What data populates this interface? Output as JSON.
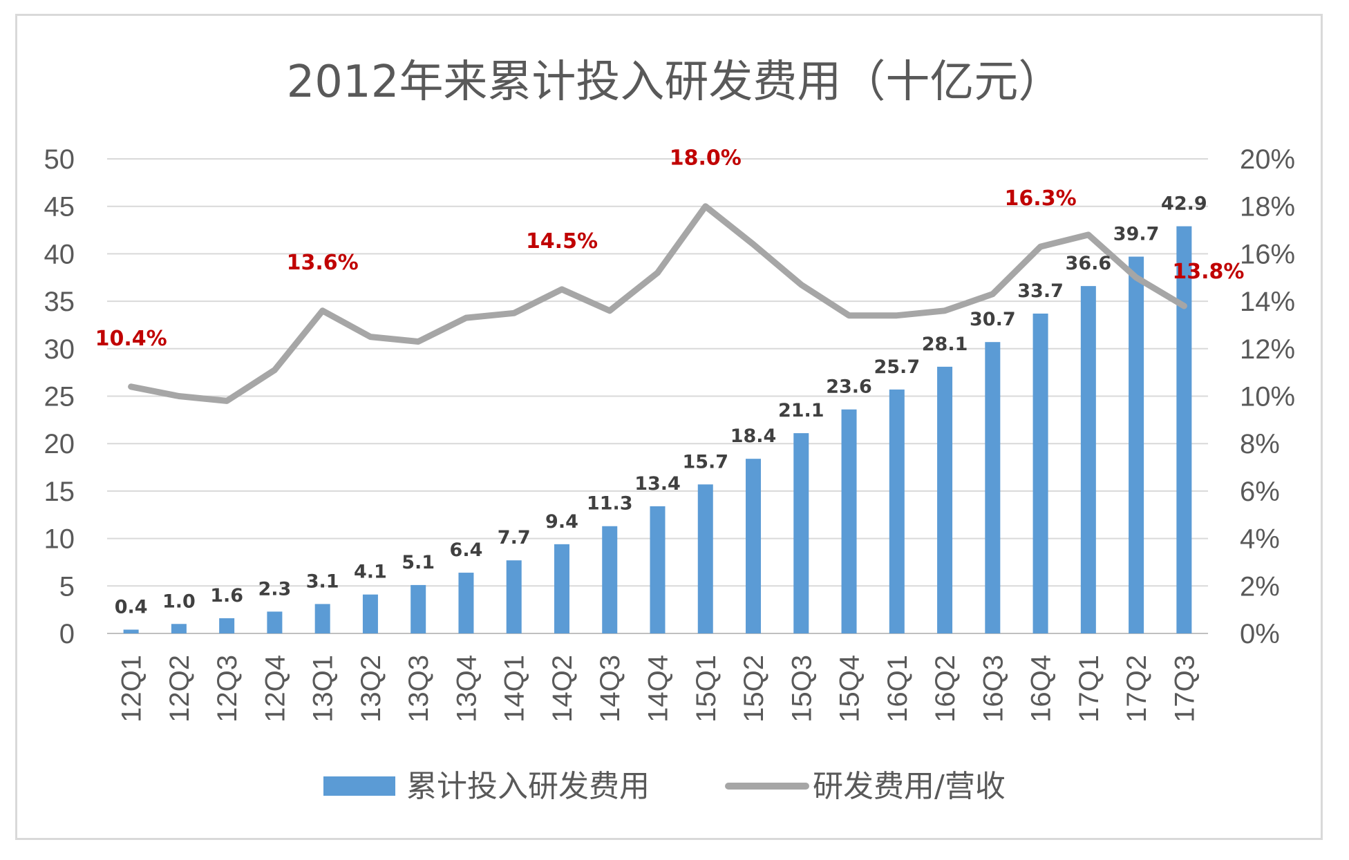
{
  "chart_data": {
    "type": "bar+line",
    "title": "2012年来累计投入研发费用（十亿元）",
    "categories": [
      "12Q1",
      "12Q2",
      "12Q3",
      "12Q4",
      "13Q1",
      "13Q2",
      "13Q3",
      "13Q4",
      "14Q1",
      "14Q2",
      "14Q3",
      "14Q4",
      "15Q1",
      "15Q2",
      "15Q3",
      "15Q4",
      "16Q1",
      "16Q2",
      "16Q3",
      "16Q4",
      "17Q1",
      "17Q2",
      "17Q3"
    ],
    "series": [
      {
        "name": "累计投入研发费用",
        "kind": "bar",
        "axis": "left",
        "color": "#5b9bd5",
        "values": [
          0.4,
          1.0,
          1.6,
          2.3,
          3.1,
          4.1,
          5.1,
          6.4,
          7.7,
          9.4,
          11.3,
          13.4,
          15.7,
          18.4,
          21.1,
          23.6,
          25.7,
          28.1,
          30.7,
          33.7,
          36.6,
          39.7,
          42.9
        ],
        "labels": [
          "0.4",
          "1.0",
          "1.6",
          "2.3",
          "3.1",
          "4.1",
          "5.1",
          "6.4",
          "7.7",
          "9.4",
          "11.3",
          "13.4",
          "15.7",
          "18.4",
          "21.1",
          "23.6",
          "25.7",
          "28.1",
          "30.7",
          "33.7",
          "36.6",
          "39.7",
          "42.9"
        ]
      },
      {
        "name": "研发费用/营收",
        "kind": "line",
        "axis": "right",
        "color": "#a6a6a6",
        "values": [
          10.4,
          10.0,
          9.8,
          11.1,
          13.6,
          12.5,
          12.3,
          13.3,
          13.5,
          14.5,
          13.6,
          15.2,
          18.0,
          16.4,
          14.7,
          13.4,
          13.4,
          13.6,
          14.3,
          16.3,
          16.8,
          15.0,
          13.8
        ],
        "labeled": [
          {
            "index": 0,
            "text": "10.4%"
          },
          {
            "index": 4,
            "text": "13.6%"
          },
          {
            "index": 9,
            "text": "14.5%"
          },
          {
            "index": 12,
            "text": "18.0%"
          },
          {
            "index": 19,
            "text": "16.3%"
          },
          {
            "index": 22,
            "text": "13.8%"
          }
        ]
      }
    ],
    "y_left": {
      "min": 0,
      "max": 50,
      "step": 5,
      "ticks": [
        "0",
        "5",
        "10",
        "15",
        "20",
        "25",
        "30",
        "35",
        "40",
        "45",
        "50"
      ]
    },
    "y_right": {
      "min": 0,
      "max": 20,
      "step": 2,
      "ticks": [
        "0%",
        "2%",
        "4%",
        "6%",
        "8%",
        "10%",
        "12%",
        "14%",
        "16%",
        "18%",
        "20%"
      ]
    },
    "grid": true,
    "legend_position": "bottom",
    "label_color": "#c00000"
  }
}
